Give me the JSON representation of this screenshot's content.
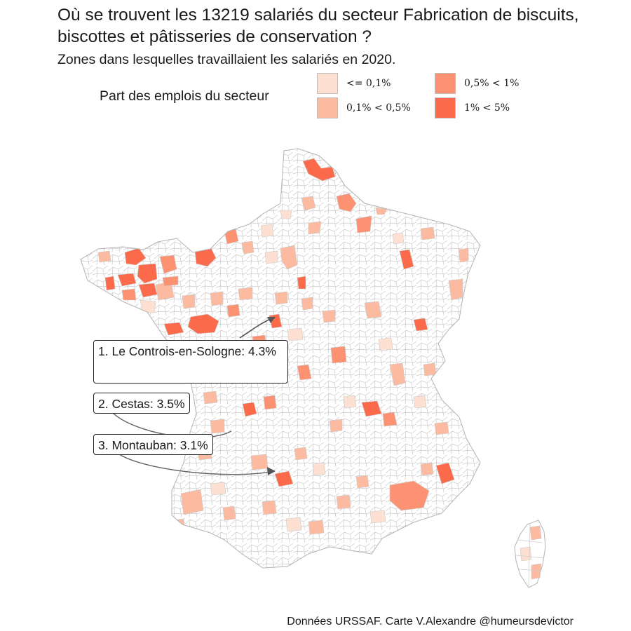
{
  "title": "Où se trouvent les 13219 salariés du secteur Fabrication de biscuits, biscottes et pâtisseries de conservation ?",
  "subtitle": "Zones dans lesquelles travaillaient les salariés en 2020.",
  "legend": {
    "title": "Part des emplois du secteur",
    "items": [
      {
        "label": "<= 0,1%",
        "color": "#fee0d2"
      },
      {
        "label": "0,1% < 0,5%",
        "color": "#fcbba1"
      },
      {
        "label": "0,5% < 1%",
        "color": "#fc9272"
      },
      {
        "label": "1% < 5%",
        "color": "#fb6a4a"
      }
    ]
  },
  "callouts": [
    {
      "rank": 1,
      "text": "1. Le Controis-en-Sologne: 4.3%"
    },
    {
      "rank": 2,
      "text": "2. Cestas: 3.5%"
    },
    {
      "rank": 3,
      "text": "3. Montauban: 3.1%"
    }
  ],
  "caption": "Données URSSAF. Carte V.Alexandre @humeursdevictor"
}
